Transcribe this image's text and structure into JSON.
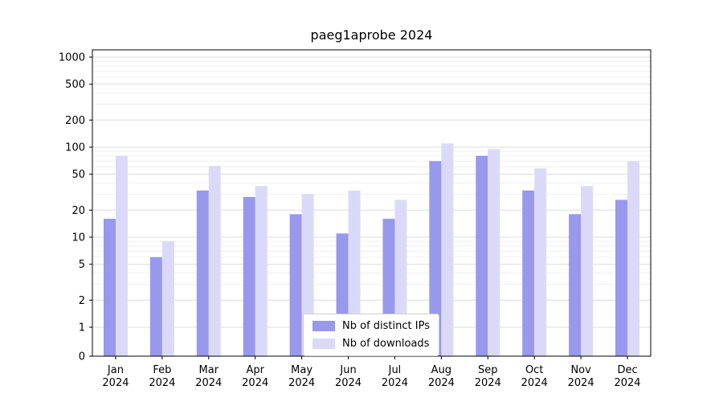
{
  "chart_data": {
    "type": "bar",
    "title": "paeg1aprobe 2024",
    "scale": "log",
    "grid": "horizontal",
    "legend_position": "bottom-center",
    "categories": [
      "Jan 2024",
      "Feb 2024",
      "Mar 2024",
      "Apr 2024",
      "May 2024",
      "Jun 2024",
      "Jul 2024",
      "Aug 2024",
      "Sep 2024",
      "Oct 2024",
      "Nov 2024",
      "Dec 2024"
    ],
    "series": [
      {
        "name": "Nb of distinct IPs",
        "color": "#9898ec",
        "values": [
          16,
          6,
          33,
          28,
          18,
          11,
          16,
          70,
          80,
          33,
          18,
          26
        ]
      },
      {
        "name": "Nb of downloads",
        "color": "#dadaf8",
        "values": [
          80,
          9,
          62,
          37,
          30,
          33,
          26,
          110,
          95,
          58,
          37,
          70
        ]
      }
    ],
    "yticks": [
      0,
      1,
      2,
      5,
      10,
      20,
      50,
      100,
      200,
      500,
      1000
    ],
    "ylim": [
      0,
      1000
    ]
  }
}
